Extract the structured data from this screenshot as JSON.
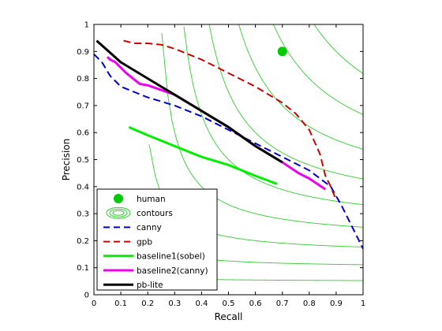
{
  "chart_data": {
    "type": "line",
    "title": "",
    "xlabel": "Recall",
    "ylabel": "Precision",
    "xlim": [
      0,
      1
    ],
    "ylim": [
      0,
      1
    ],
    "xticks": [
      "0",
      "0.1",
      "0.2",
      "0.3",
      "0.4",
      "0.5",
      "0.6",
      "0.7",
      "0.8",
      "0.9",
      "1"
    ],
    "yticks": [
      "0",
      "0.1",
      "0.2",
      "0.3",
      "0.4",
      "0.5",
      "0.6",
      "0.7",
      "0.8",
      "0.9",
      "1"
    ],
    "grid": false,
    "legend_position": "bottom-left",
    "contour_levels_f": [
      0.1,
      0.2,
      0.3,
      0.4,
      0.5,
      0.6,
      0.7,
      0.8,
      0.9
    ],
    "series": [
      {
        "name": "human",
        "style": "marker",
        "color": "#00cc00",
        "x": [
          0.7
        ],
        "y": [
          0.9
        ]
      },
      {
        "name": "contours",
        "style": "contour",
        "color": "#33cc33"
      },
      {
        "name": "canny",
        "style": "dashed",
        "color": "#0000cc",
        "x": [
          0.0,
          0.03,
          0.06,
          0.1,
          0.15,
          0.2,
          0.3,
          0.4,
          0.5,
          0.6,
          0.7,
          0.8,
          0.88,
          0.92,
          0.96,
          1.0
        ],
        "y": [
          0.89,
          0.86,
          0.81,
          0.77,
          0.75,
          0.73,
          0.7,
          0.66,
          0.61,
          0.56,
          0.51,
          0.46,
          0.4,
          0.33,
          0.25,
          0.17
        ]
      },
      {
        "name": "gpb",
        "style": "dashed",
        "color": "#cc0000",
        "x": [
          0.11,
          0.15,
          0.2,
          0.25,
          0.3,
          0.4,
          0.5,
          0.6,
          0.65,
          0.7,
          0.75,
          0.8,
          0.84,
          0.86,
          0.88,
          0.9
        ],
        "y": [
          0.94,
          0.93,
          0.93,
          0.925,
          0.91,
          0.87,
          0.82,
          0.77,
          0.74,
          0.71,
          0.67,
          0.61,
          0.52,
          0.44,
          0.4,
          0.35
        ]
      },
      {
        "name": "baseline1(sobel)",
        "style": "solid",
        "color": "#00ee00",
        "x": [
          0.13,
          0.2,
          0.3,
          0.4,
          0.5,
          0.6,
          0.68
        ],
        "y": [
          0.62,
          0.59,
          0.55,
          0.51,
          0.48,
          0.44,
          0.41
        ]
      },
      {
        "name": "baseline2(canny)",
        "style": "solid",
        "color": "#ee00ee",
        "x": [
          0.05,
          0.06,
          0.08,
          0.1,
          0.12,
          0.17,
          0.2,
          0.3,
          0.4,
          0.5,
          0.6,
          0.7,
          0.76,
          0.8,
          0.86
        ],
        "y": [
          0.88,
          0.87,
          0.86,
          0.84,
          0.82,
          0.78,
          0.775,
          0.74,
          0.68,
          0.62,
          0.55,
          0.49,
          0.45,
          0.43,
          0.39
        ]
      },
      {
        "name": "pb-lite",
        "style": "solid",
        "color": "#000000",
        "x": [
          0.01,
          0.1,
          0.2,
          0.3,
          0.4,
          0.5,
          0.6,
          0.7
        ],
        "y": [
          0.94,
          0.86,
          0.8,
          0.74,
          0.68,
          0.62,
          0.55,
          0.49
        ]
      }
    ]
  }
}
